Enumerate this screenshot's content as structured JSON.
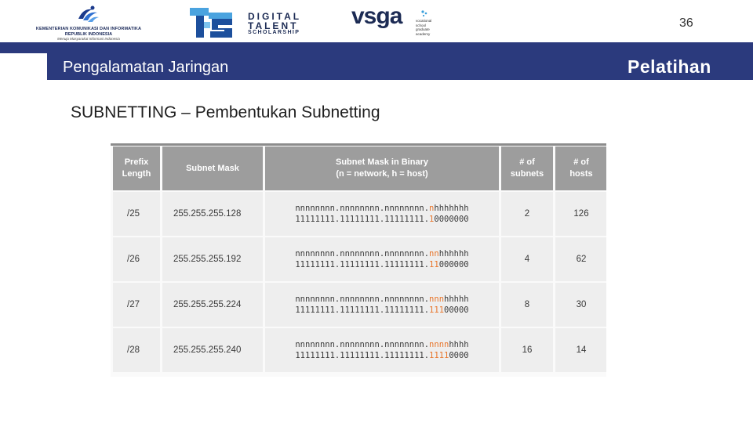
{
  "header": {
    "kominfo": {
      "line1": "KEMENTERIAN KOMUNIKASI DAN INFORMATIKA",
      "line2": "REPUBLIK INDONESIA",
      "line3": "Menuju Masyarakat Informasi Indonesia"
    },
    "dts": {
      "line1": "DIGITAL",
      "line2": "TALENT",
      "line3": "SCHOLARSHIP"
    },
    "vsga": {
      "word": "vsga",
      "sub": "vocational school graduate academy"
    },
    "page_number": "36"
  },
  "title_bar": {
    "left": "Pengalamatan Jaringan",
    "right": "Pelatihan"
  },
  "subtitle": "SUBNETTING – Pembentukan Subnetting",
  "colors": {
    "title_bar": "#2b3a7d",
    "header_cell": "#9d9d9d",
    "body_cell": "#eeeeee",
    "highlight": "#e8762c"
  },
  "table": {
    "headers": {
      "prefix": [
        "Prefix",
        "Length"
      ],
      "mask": "Subnet Mask",
      "binary": [
        "Subnet Mask in Binary",
        "(n = network, h = host)"
      ],
      "subnets": [
        "# of",
        "subnets"
      ],
      "hosts": [
        "# of",
        "hosts"
      ]
    },
    "rows": [
      {
        "prefix": "/25",
        "mask": "255.255.255.128",
        "bin1_pre": "nnnnnnnn.nnnnnnnn.nnnnnnnn.",
        "bin1_hl": "n",
        "bin1_post": "hhhhhhh",
        "bin2_pre": "11111111.11111111.11111111.",
        "bin2_hl": "1",
        "bin2_post": "0000000",
        "subnets": "2",
        "hosts": "126"
      },
      {
        "prefix": "/26",
        "mask": "255.255.255.192",
        "bin1_pre": "nnnnnnnn.nnnnnnnn.nnnnnnnn.",
        "bin1_hl": "nn",
        "bin1_post": "hhhhhh",
        "bin2_pre": "11111111.11111111.11111111.",
        "bin2_hl": "11",
        "bin2_post": "000000",
        "subnets": "4",
        "hosts": "62"
      },
      {
        "prefix": "/27",
        "mask": "255.255.255.224",
        "bin1_pre": "nnnnnnnn.nnnnnnnn.nnnnnnnn.",
        "bin1_hl": "nnn",
        "bin1_post": "hhhhh",
        "bin2_pre": "11111111.11111111.11111111.",
        "bin2_hl": "111",
        "bin2_post": "00000",
        "subnets": "8",
        "hosts": "30"
      },
      {
        "prefix": "/28",
        "mask": "255.255.255.240",
        "bin1_pre": "nnnnnnnn.nnnnnnnn.nnnnnnnn.",
        "bin1_hl": "nnnn",
        "bin1_post": "hhhh",
        "bin2_pre": "11111111.11111111.11111111.",
        "bin2_hl": "1111",
        "bin2_post": "0000",
        "subnets": "16",
        "hosts": "14"
      }
    ]
  }
}
